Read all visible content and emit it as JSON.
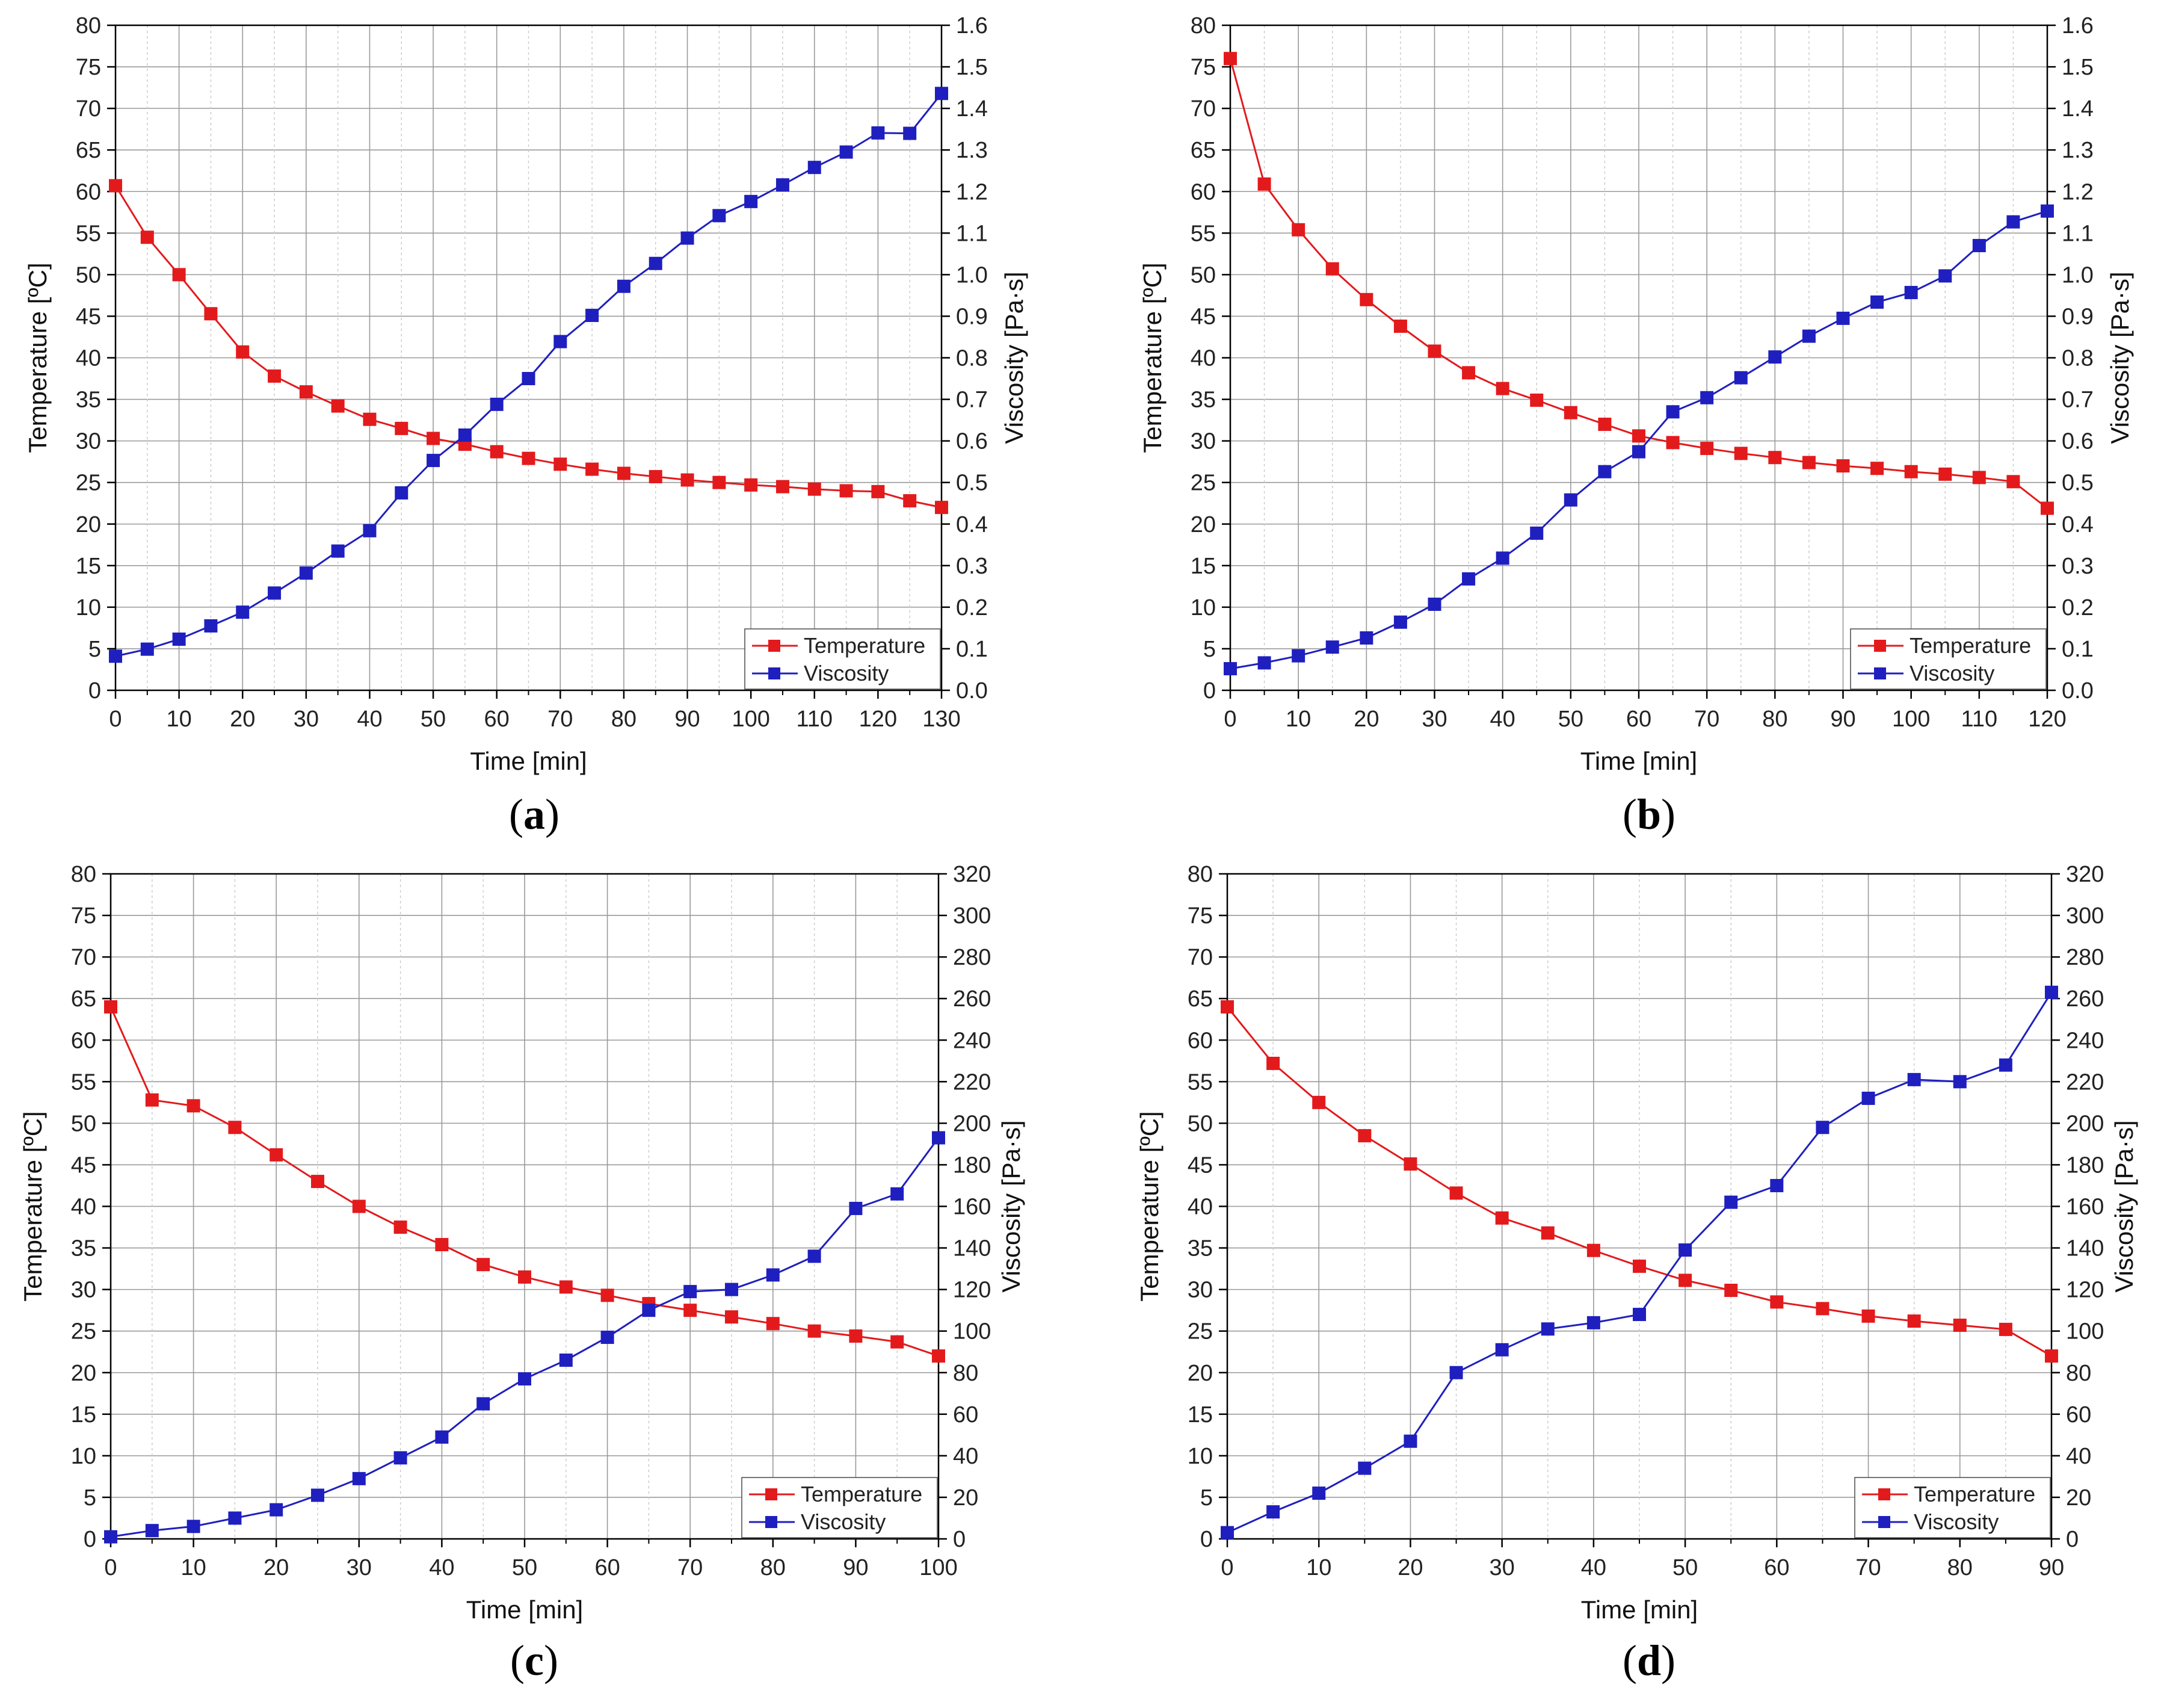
{
  "colors": {
    "temperature": "#e31a1c",
    "viscosity": "#1f1fbf",
    "grid_major": "#9a9a9a",
    "grid_minor": "#c8c8c8",
    "axis": "#000000"
  },
  "chart_data": [
    {
      "panel": "a",
      "type": "line",
      "xlabel": "Time [min]",
      "ylabel_left": "Temperature [ºC]",
      "ylabel_right": "Viscosity [Pa·s]",
      "xlim": [
        0,
        130
      ],
      "ylim_left": [
        0,
        80
      ],
      "ylim_right": [
        0,
        1.6
      ],
      "xticks": [
        "0",
        "10",
        "20",
        "30",
        "40",
        "50",
        "60",
        "70",
        "80",
        "90",
        "100",
        "110",
        "120",
        "130"
      ],
      "xtick_values": [
        0,
        10,
        20,
        30,
        40,
        50,
        60,
        70,
        80,
        90,
        100,
        110,
        120,
        130
      ],
      "yticks_left": [
        "0",
        "5",
        "10",
        "15",
        "20",
        "25",
        "30",
        "35",
        "40",
        "45",
        "50",
        "55",
        "60",
        "65",
        "70",
        "75",
        "80"
      ],
      "yticks_right": [
        "0.0",
        "0.1",
        "0.2",
        "0.3",
        "0.4",
        "0.5",
        "0.6",
        "0.7",
        "0.8",
        "0.9",
        "1.0",
        "1.1",
        "1.2",
        "1.3",
        "1.4",
        "1.5",
        "1.6"
      ],
      "x": [
        0,
        5,
        10,
        15,
        20,
        25,
        30,
        35,
        40,
        45,
        50,
        55,
        60,
        65,
        70,
        75,
        80,
        85,
        90,
        95,
        100,
        105,
        110,
        115,
        120,
        125,
        130
      ],
      "series": [
        {
          "name": "Temperature",
          "axis": "left",
          "values": [
            60.7,
            54.5,
            50.0,
            45.3,
            40.7,
            37.8,
            35.9,
            34.2,
            32.6,
            31.5,
            30.3,
            29.6,
            28.7,
            27.9,
            27.2,
            26.6,
            26.1,
            25.7,
            25.3,
            25.0,
            24.7,
            24.5,
            24.2,
            24.0,
            23.9,
            22.8,
            22.0
          ]
        },
        {
          "name": "Viscosity",
          "axis": "right",
          "values": [
            0.082,
            0.099,
            0.123,
            0.155,
            0.188,
            0.234,
            0.282,
            0.335,
            0.384,
            0.475,
            0.553,
            0.614,
            0.688,
            0.75,
            0.839,
            0.902,
            0.972,
            1.027,
            1.088,
            1.142,
            1.176,
            1.216,
            1.258,
            1.295,
            1.341,
            1.34,
            1.436
          ]
        }
      ],
      "legend": [
        "Temperature",
        "Viscosity"
      ],
      "legend_position": "bottom-right",
      "panel_label": "a"
    },
    {
      "panel": "b",
      "type": "line",
      "xlabel": "Time [min]",
      "ylabel_left": "Temperature [ºC]",
      "ylabel_right": "Viscosity [Pa·s]",
      "xlim": [
        0,
        120
      ],
      "ylim_left": [
        0,
        80
      ],
      "ylim_right": [
        0,
        1.6
      ],
      "xticks": [
        "0",
        "10",
        "20",
        "30",
        "40",
        "50",
        "60",
        "70",
        "80",
        "90",
        "100",
        "110",
        "120"
      ],
      "xtick_values": [
        0,
        10,
        20,
        30,
        40,
        50,
        60,
        70,
        80,
        90,
        100,
        110,
        120
      ],
      "yticks_left": [
        "0",
        "5",
        "10",
        "15",
        "20",
        "25",
        "30",
        "35",
        "40",
        "45",
        "50",
        "55",
        "60",
        "65",
        "70",
        "75",
        "80"
      ],
      "yticks_right": [
        "0.0",
        "0.1",
        "0.2",
        "0.3",
        "0.4",
        "0.5",
        "0.6",
        "0.7",
        "0.8",
        "0.9",
        "1.0",
        "1.1",
        "1.2",
        "1.3",
        "1.4",
        "1.5",
        "1.6"
      ],
      "x": [
        0,
        5,
        10,
        15,
        20,
        25,
        30,
        35,
        40,
        45,
        50,
        55,
        60,
        65,
        70,
        75,
        80,
        85,
        90,
        95,
        100,
        105,
        110,
        115,
        120
      ],
      "series": [
        {
          "name": "Temperature",
          "axis": "left",
          "values": [
            76.0,
            60.9,
            55.4,
            50.7,
            47.0,
            43.8,
            40.8,
            38.2,
            36.3,
            34.9,
            33.4,
            32.0,
            30.6,
            29.8,
            29.1,
            28.5,
            28.0,
            27.4,
            27.0,
            26.7,
            26.3,
            26.0,
            25.6,
            25.1,
            21.9
          ]
        },
        {
          "name": "Viscosity",
          "axis": "right",
          "values": [
            0.052,
            0.066,
            0.083,
            0.104,
            0.126,
            0.164,
            0.207,
            0.268,
            0.318,
            0.378,
            0.458,
            0.526,
            0.574,
            0.67,
            0.704,
            0.752,
            0.802,
            0.852,
            0.895,
            0.934,
            0.957,
            0.997,
            1.07,
            1.127,
            1.153
          ]
        }
      ],
      "legend": [
        "Temperature",
        "Viscosity"
      ],
      "legend_position": "bottom-right",
      "panel_label": "b"
    },
    {
      "panel": "c",
      "type": "line",
      "xlabel": "Time [min]",
      "ylabel_left": "Temperature [ºC]",
      "ylabel_right": "Viscosity [Pa·s]",
      "xlim": [
        0,
        100
      ],
      "ylim_left": [
        0,
        80
      ],
      "ylim_right": [
        0,
        320
      ],
      "xticks": [
        "0",
        "10",
        "20",
        "30",
        "40",
        "50",
        "60",
        "70",
        "80",
        "90",
        "100"
      ],
      "xtick_values": [
        0,
        10,
        20,
        30,
        40,
        50,
        60,
        70,
        80,
        90,
        100
      ],
      "yticks_left": [
        "0",
        "5",
        "10",
        "15",
        "20",
        "25",
        "30",
        "35",
        "40",
        "45",
        "50",
        "55",
        "60",
        "65",
        "70",
        "75",
        "80"
      ],
      "yticks_right": [
        "0",
        "20",
        "40",
        "60",
        "80",
        "100",
        "120",
        "140",
        "160",
        "180",
        "200",
        "220",
        "240",
        "260",
        "280",
        "300",
        "320"
      ],
      "x": [
        0,
        5,
        10,
        15,
        20,
        25,
        30,
        35,
        40,
        45,
        50,
        55,
        60,
        65,
        70,
        75,
        80,
        85,
        90,
        95,
        100
      ],
      "series": [
        {
          "name": "Temperature",
          "axis": "left",
          "values": [
            64.0,
            52.8,
            52.1,
            49.5,
            46.2,
            43.0,
            40.0,
            37.5,
            35.4,
            33.0,
            31.5,
            30.3,
            29.3,
            28.3,
            27.5,
            26.7,
            25.9,
            25.0,
            24.4,
            23.7,
            22.0
          ]
        },
        {
          "name": "Viscosity",
          "axis": "right",
          "values": [
            1,
            4,
            6,
            10,
            14,
            21,
            29,
            39,
            49,
            65,
            77,
            86,
            97,
            110,
            119,
            120,
            127,
            136,
            159,
            166,
            193
          ]
        }
      ],
      "legend": [
        "Temperature",
        "Viscosity"
      ],
      "legend_position": "bottom-right",
      "panel_label": "c"
    },
    {
      "panel": "d",
      "type": "line",
      "xlabel": "Time [min]",
      "ylabel_left": "Temperature [ºC]",
      "ylabel_right": "Viscosity [Pa·s]",
      "xlim": [
        0,
        90
      ],
      "ylim_left": [
        0,
        80
      ],
      "ylim_right": [
        0,
        320
      ],
      "xticks": [
        "0",
        "10",
        "20",
        "30",
        "40",
        "50",
        "60",
        "70",
        "80",
        "90"
      ],
      "xtick_values": [
        0,
        10,
        20,
        30,
        40,
        50,
        60,
        70,
        80,
        90
      ],
      "yticks_left": [
        "0",
        "5",
        "10",
        "15",
        "20",
        "25",
        "30",
        "35",
        "40",
        "45",
        "50",
        "55",
        "60",
        "65",
        "70",
        "75",
        "80"
      ],
      "yticks_right": [
        "0",
        "20",
        "40",
        "60",
        "80",
        "100",
        "120",
        "140",
        "160",
        "180",
        "200",
        "220",
        "240",
        "260",
        "280",
        "300",
        "320"
      ],
      "x": [
        0,
        5,
        10,
        15,
        20,
        25,
        30,
        35,
        40,
        45,
        50,
        55,
        60,
        65,
        70,
        75,
        80,
        85,
        90
      ],
      "series": [
        {
          "name": "Temperature",
          "axis": "left",
          "values": [
            64.0,
            57.2,
            52.5,
            48.5,
            45.1,
            41.6,
            38.6,
            36.8,
            34.7,
            32.8,
            31.1,
            29.9,
            28.5,
            27.7,
            26.8,
            26.2,
            25.7,
            25.2,
            22.0
          ]
        },
        {
          "name": "Viscosity",
          "axis": "right",
          "values": [
            3,
            13,
            22,
            34,
            47,
            80,
            91,
            101,
            104,
            108,
            139,
            162,
            170,
            198,
            212,
            221,
            220,
            228,
            263
          ]
        }
      ],
      "legend": [
        "Temperature",
        "Viscosity"
      ],
      "legend_position": "bottom-right",
      "panel_label": "d"
    }
  ]
}
